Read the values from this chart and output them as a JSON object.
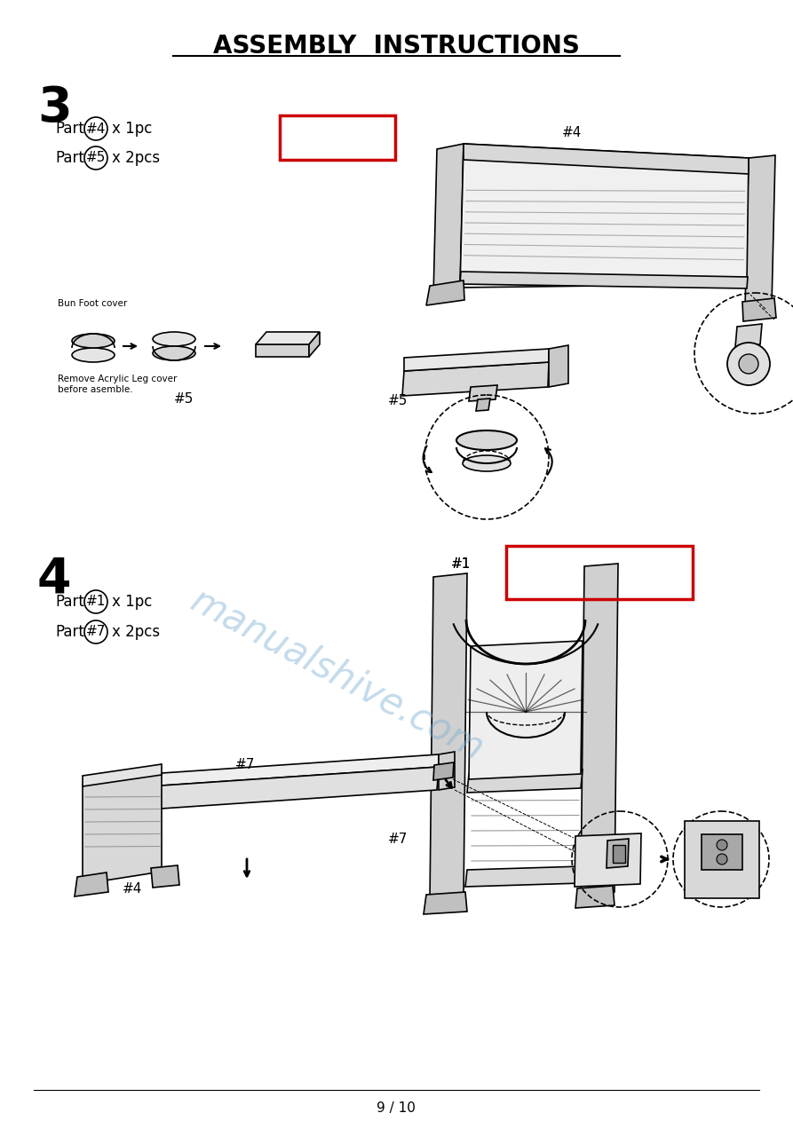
{
  "title": "ASSEMBLY  INSTRUCTIONS",
  "title_fontsize": 20,
  "title_fontweight": "bold",
  "page_number": "9 / 10",
  "background_color": "#ffffff",
  "step3_number": "3",
  "step3_part1_num": "#4",
  "step3_part1_qty": "x 1pc",
  "step3_part2_num": "#5",
  "step3_part2_qty": "x 2pcs",
  "step3_label4": "#4",
  "step3_label5": "#5",
  "bun_foot_label": "Bun Foot cover",
  "remove_label": "Remove Acrylic Leg cover\nbefore asemble.",
  "part5_label": "#5",
  "step4_number": "4",
  "step4_part1_num": "#1",
  "step4_part1_qty": "x 1pc",
  "step4_part2_num": "#7",
  "step4_part2_qty": "x 2pcs",
  "step4_label1": "#1",
  "step4_label7a": "#7",
  "step4_label7b": "#7",
  "step4_label4": "#4",
  "watermark": "manualshive.com",
  "watermark_color": "#7bafd4",
  "watermark_alpha": 0.45,
  "red_color": "#cc0000"
}
